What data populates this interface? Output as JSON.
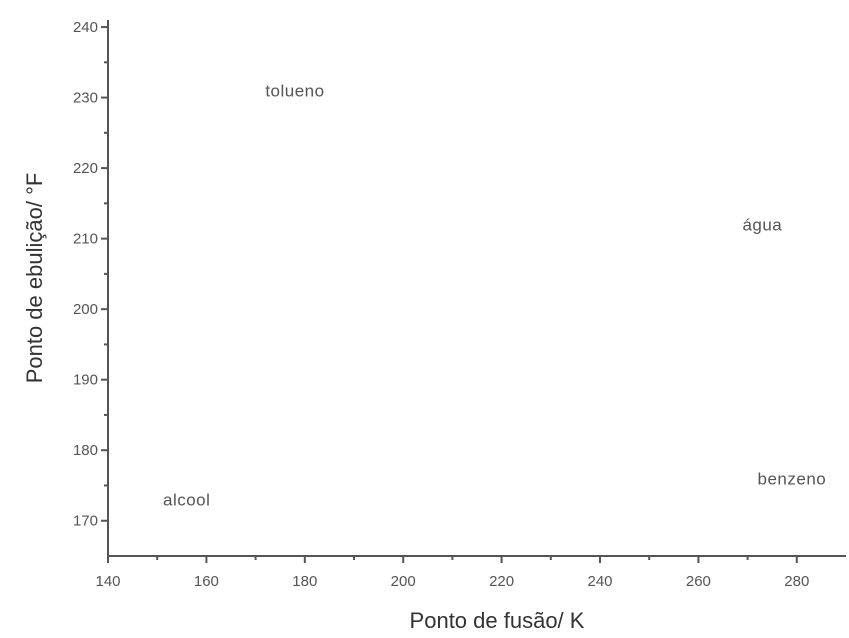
{
  "chart_data": {
    "type": "scatter",
    "xlabel": "Ponto de fusão/ K",
    "ylabel": "Ponto de ebulição/ °F",
    "xlim": [
      140,
      290
    ],
    "ylim": [
      165,
      241
    ],
    "x_ticks": [
      140,
      160,
      180,
      200,
      220,
      240,
      260,
      280
    ],
    "y_ticks": [
      170,
      180,
      190,
      200,
      210,
      220,
      230,
      240
    ],
    "grid": false,
    "marker": "text-label",
    "points": [
      {
        "label": "alcool",
        "x": 156,
        "y": 173
      },
      {
        "label": "tolueno",
        "x": 178,
        "y": 231
      },
      {
        "label": "água",
        "x": 273,
        "y": 212
      },
      {
        "label": "benzeno",
        "x": 279,
        "y": 176
      }
    ]
  }
}
